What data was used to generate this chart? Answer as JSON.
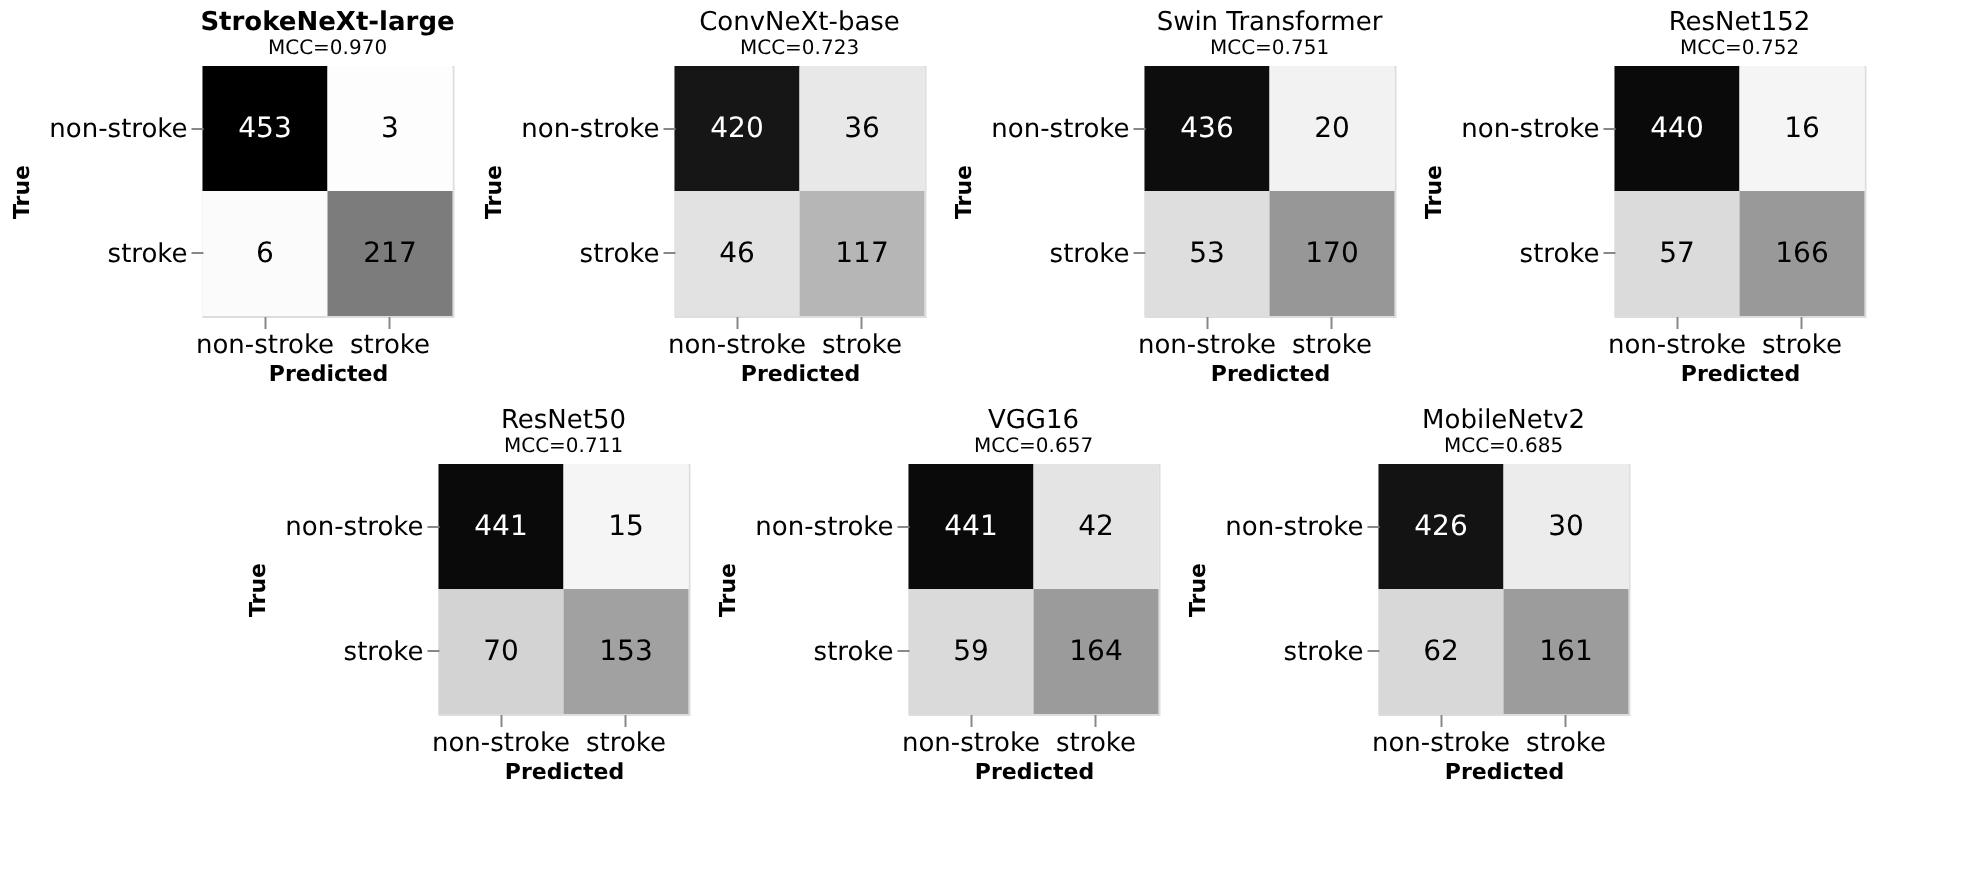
{
  "chart_data": [
    {
      "type": "heatmap",
      "title": "StrokeNeXt-large",
      "subtitle": "MCC=0.970",
      "xlabel": "Predicted",
      "ylabel": "True",
      "categories": [
        "non-stroke",
        "stroke"
      ],
      "y_categories": [
        "non-stroke",
        "stroke"
      ],
      "cells": [
        [
          453,
          3
        ],
        [
          6,
          217
        ]
      ],
      "data_labels": true
    },
    {
      "type": "heatmap",
      "title": "ConvNeXt-base",
      "subtitle": "MCC=0.723",
      "xlabel": "Predicted",
      "ylabel": "True",
      "categories": [
        "non-stroke",
        "stroke"
      ],
      "y_categories": [
        "non-stroke",
        "stroke"
      ],
      "cells": [
        [
          420,
          36
        ],
        [
          46,
          117
        ]
      ],
      "data_labels": true
    },
    {
      "type": "heatmap",
      "title": "Swin Transformer",
      "subtitle": "MCC=0.751",
      "xlabel": "Predicted",
      "ylabel": "True",
      "categories": [
        "non-stroke",
        "stroke"
      ],
      "y_categories": [
        "non-stroke",
        "stroke"
      ],
      "cells": [
        [
          436,
          20
        ],
        [
          53,
          170
        ]
      ],
      "data_labels": true
    },
    {
      "type": "heatmap",
      "title": "ResNet152",
      "subtitle": "MCC=0.752",
      "xlabel": "Predicted",
      "ylabel": "True",
      "categories": [
        "non-stroke",
        "stroke"
      ],
      "y_categories": [
        "non-stroke",
        "stroke"
      ],
      "cells": [
        [
          440,
          16
        ],
        [
          57,
          166
        ]
      ],
      "data_labels": true
    },
    {
      "type": "heatmap",
      "title": "ResNet50",
      "subtitle": "MCC=0.711",
      "xlabel": "Predicted",
      "ylabel": "True",
      "categories": [
        "non-stroke",
        "stroke"
      ],
      "y_categories": [
        "non-stroke",
        "stroke"
      ],
      "cells": [
        [
          441,
          15
        ],
        [
          70,
          153
        ]
      ],
      "data_labels": true
    },
    {
      "type": "heatmap",
      "title": "VGG16",
      "subtitle": "MCC=0.657",
      "xlabel": "Predicted",
      "ylabel": "True",
      "categories": [
        "non-stroke",
        "stroke"
      ],
      "y_categories": [
        "non-stroke",
        "stroke"
      ],
      "cells": [
        [
          441,
          42
        ],
        [
          59,
          164
        ]
      ],
      "data_labels": true
    },
    {
      "type": "heatmap",
      "title": "MobileNetv2",
      "subtitle": "MCC=0.685",
      "xlabel": "Predicted",
      "ylabel": "True",
      "categories": [
        "non-stroke",
        "stroke"
      ],
      "y_categories": [
        "non-stroke",
        "stroke"
      ],
      "cells": [
        [
          426,
          30
        ],
        [
          62,
          161
        ]
      ],
      "data_labels": true
    }
  ]
}
